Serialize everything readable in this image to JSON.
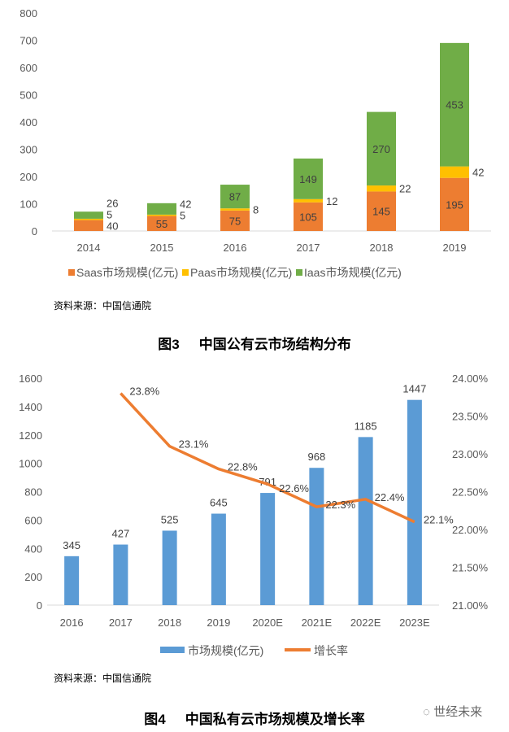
{
  "chart_data": [
    {
      "type": "bar",
      "stacked": true,
      "categories": [
        "2014",
        "2015",
        "2016",
        "2017",
        "2018",
        "2019"
      ],
      "series": [
        {
          "name": "Saas市场规模(亿元)",
          "color": "#ED7D31",
          "values": [
            40,
            55,
            75,
            105,
            145,
            195
          ]
        },
        {
          "name": "Paas市场规模(亿元)",
          "color": "#FFC000",
          "values": [
            5,
            5,
            8,
            12,
            22,
            42
          ]
        },
        {
          "name": "Iaas市场规模(亿元)",
          "color": "#70AD47",
          "values": [
            26,
            42,
            87,
            149,
            270,
            453
          ]
        }
      ],
      "ylim": [
        0,
        800
      ],
      "yticks": [
        0,
        100,
        200,
        300,
        400,
        500,
        600,
        700,
        800
      ],
      "grid": false,
      "legend": "bottom",
      "source": "资料来源：中国信通院",
      "caption_num": "图3",
      "caption": "中国公有云市场结构分布"
    },
    {
      "type": "bar+line",
      "categories": [
        "2016",
        "2017",
        "2018",
        "2019",
        "2020E",
        "2021E",
        "2022E",
        "2023E"
      ],
      "series": [
        {
          "name": "市场规模(亿元)",
          "type": "bar",
          "axis": "left",
          "color": "#5B9BD5",
          "values": [
            345,
            427,
            525,
            645,
            791,
            968,
            1185,
            1447
          ]
        },
        {
          "name": "增长率",
          "type": "line",
          "axis": "right",
          "color": "#ED7D31",
          "values": [
            null,
            23.8,
            23.1,
            22.8,
            22.6,
            22.3,
            22.4,
            22.1
          ],
          "labels": [
            "",
            "23.8%",
            "23.1%",
            "22.8%",
            "22.6%",
            "22.3%",
            "22.4%",
            "22.1%"
          ]
        }
      ],
      "ylim": [
        0,
        1600
      ],
      "yticks": [
        0,
        200,
        400,
        600,
        800,
        1000,
        1200,
        1400,
        1600
      ],
      "y2lim": [
        21,
        24
      ],
      "y2ticks": [
        "21.00%",
        "21.50%",
        "22.00%",
        "22.50%",
        "23.00%",
        "23.50%",
        "24.00%"
      ],
      "grid": false,
      "legend": "bottom",
      "source": "资料来源：中国信通院",
      "caption_num": "图4",
      "caption": "中国私有云市场规模及增长率"
    }
  ],
  "watermark": "世经未来"
}
